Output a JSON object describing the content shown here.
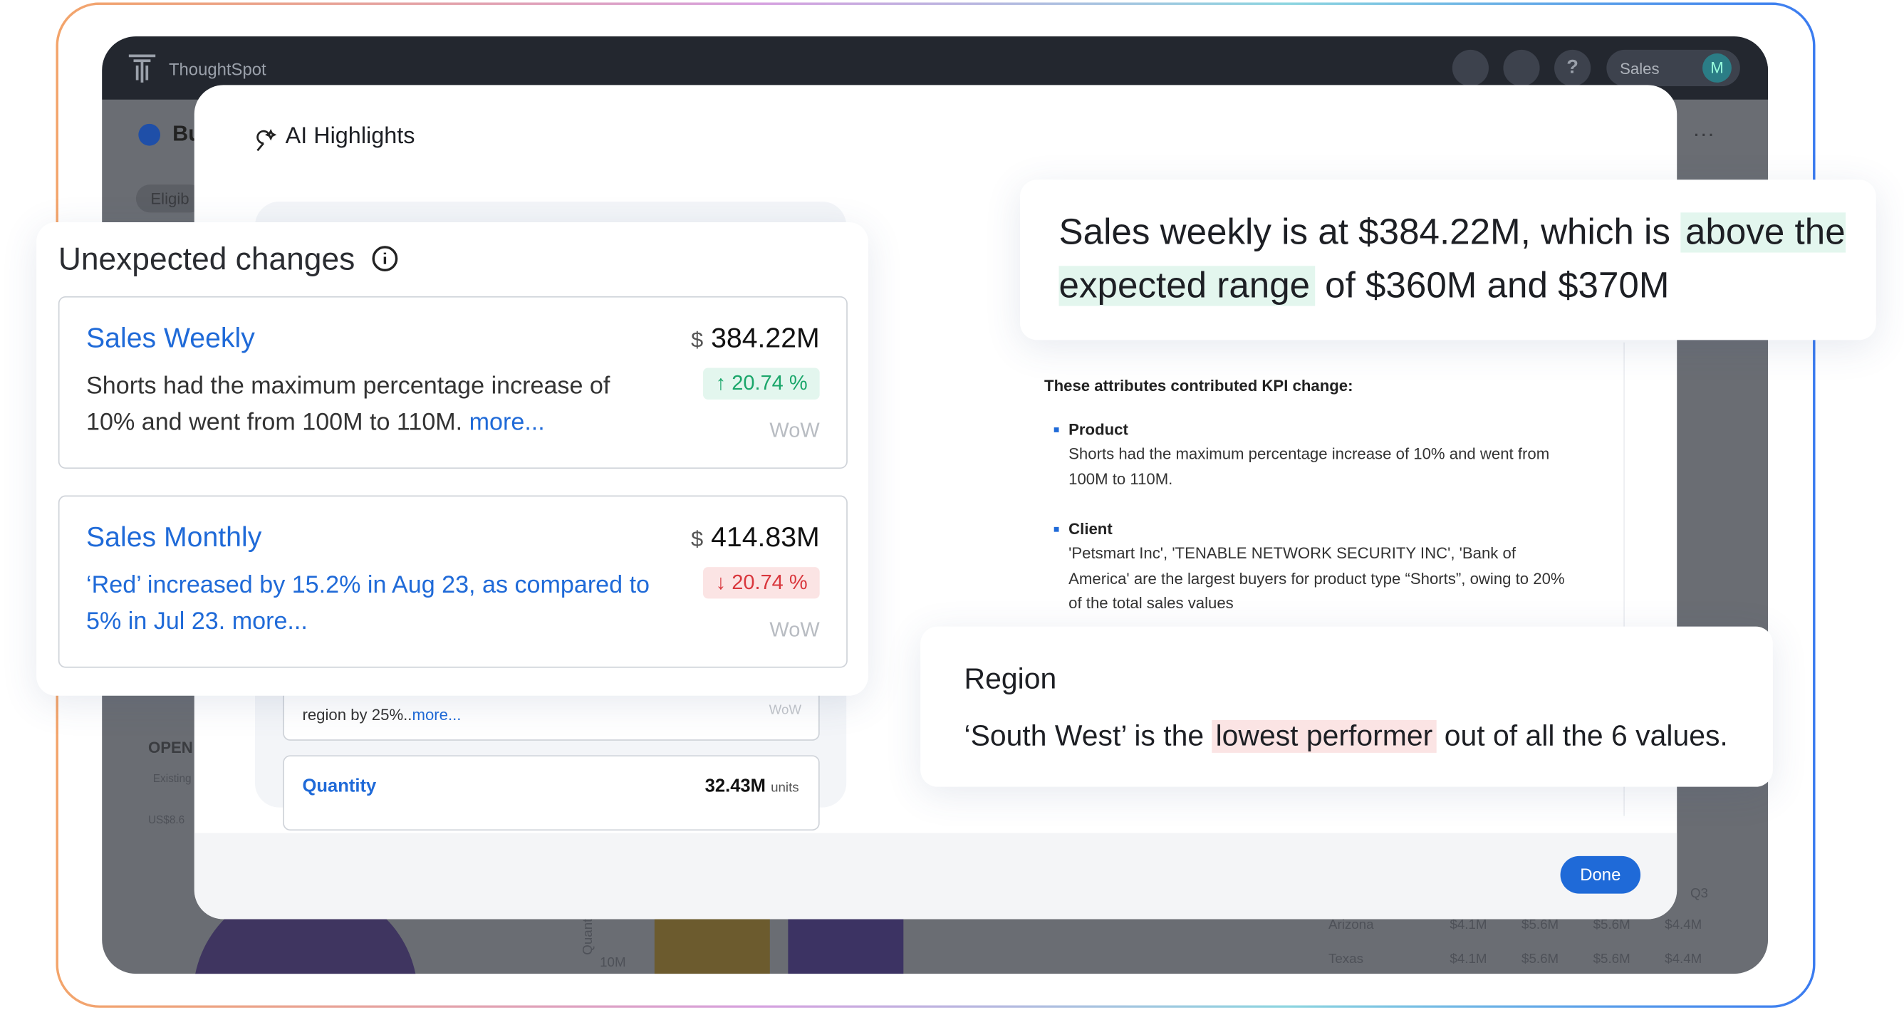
{
  "app": {
    "name": "ThoughtSpot",
    "user_menu": "Sales",
    "avatar": "M"
  },
  "background": {
    "page_title": "Bu",
    "filter": "Eligib",
    "panel_label": "OPEN",
    "panel_sub": "Existing",
    "panel_value": "US$8.6",
    "axis_label": "Quantity",
    "axis_tick": "10M",
    "table": {
      "header": "Q3",
      "rows": [
        [
          "Arizona",
          "$4.1M",
          "$5.6M",
          "$5.6M",
          "$4.4M"
        ],
        [
          "Texas",
          "$4.1M",
          "$5.6M",
          "$5.6M",
          "$4.4M"
        ]
      ]
    }
  },
  "modal": {
    "title": "AI Highlights",
    "done": "Done",
    "inner_cards": [
      {
        "text": "region by 25%..",
        "link": "more...",
        "period": "WoW"
      },
      {
        "name": "Quantity",
        "value": "32.43M",
        "unit": "units"
      }
    ]
  },
  "unexpected": {
    "title": "Unexpected changes",
    "cards": [
      {
        "name": "Sales Weekly",
        "currency": "$",
        "value": "384.22M",
        "change": "20.74 %",
        "direction": "up",
        "period": "WoW",
        "text": "Shorts had the maximum percentage increase of 10% and went from 100M to 110M.",
        "link": "more..."
      },
      {
        "name": "Sales Monthly",
        "currency": "$",
        "value": "414.83M",
        "change": "20.74 %",
        "direction": "down",
        "period": "WoW",
        "text": "‘Red’ increased by 15.2% in Aug 23, as compared to 5% in  Jul 23.",
        "link": "more..."
      }
    ]
  },
  "summary": {
    "before": "Sales weekly is at $384.22M, which is ",
    "highlight": "above the expected range",
    "after": " of $360M and $370M"
  },
  "attributes": {
    "heading": "These attributes contributed KPI change:",
    "items": [
      {
        "name": "Product",
        "text": "Shorts had the maximum percentage increase of 10% and went from 100M to 110M."
      },
      {
        "name": "Client",
        "text": "'Petsmart Inc', 'TENABLE NETWORK SECURITY INC', 'Bank of America' are the largest buyers for product type “Shorts”, owing to 20% of the total sales values"
      }
    ]
  },
  "region": {
    "title": "Region",
    "before": "‘South West’ is the ",
    "highlight": "lowest performer",
    "after": " out of all the 6 values."
  }
}
